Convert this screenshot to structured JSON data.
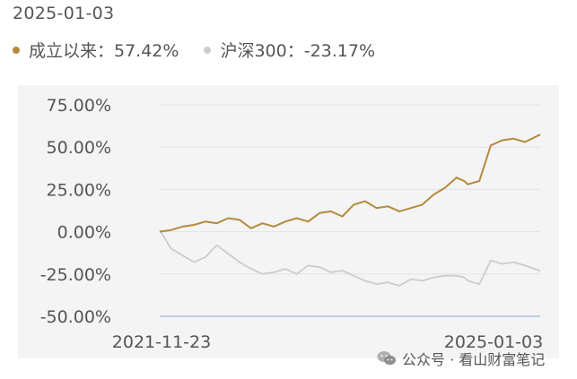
{
  "header": {
    "date": "2025-01-03"
  },
  "legend": [
    {
      "label": "成立以来：57.42%",
      "color": "#b58a3e"
    },
    {
      "label": "沪深300：-23.17%",
      "color": "#cccccc"
    }
  ],
  "watermark": {
    "text": "公众号 · 看山财富笔记"
  },
  "chart_data": {
    "type": "line",
    "title": "",
    "xlabel": "",
    "ylabel": "",
    "y_ticks": [
      "75.00%",
      "50.00%",
      "25.00%",
      "0.00%",
      "-25.00%",
      "-50.00%"
    ],
    "x_ticks": [
      "2021-11-23",
      "2025-01-03"
    ],
    "ylim": [
      -50,
      75
    ],
    "grid": true,
    "colors": {
      "fund": "#b58a3e",
      "index": "#cccccc",
      "baseline": "#a9c4ea",
      "grid": "#dde3ee"
    },
    "x": [
      0,
      3,
      6,
      9,
      12,
      15,
      18,
      21,
      24,
      27,
      30,
      33,
      36,
      39,
      42,
      45,
      48,
      51,
      54,
      57,
      60,
      63,
      66,
      69,
      72,
      75,
      78,
      80,
      81,
      84,
      87,
      90,
      93,
      96,
      100
    ],
    "series": [
      {
        "values": [
          0,
          1,
          3,
          4,
          6,
          5,
          8,
          7,
          2,
          5,
          3,
          6,
          8,
          6,
          11,
          12,
          9,
          16,
          18,
          14,
          15,
          12,
          14,
          16,
          22,
          26,
          32,
          30,
          28,
          30,
          51,
          54,
          55,
          53,
          57.42
        ]
      },
      {
        "values": [
          1,
          -10,
          -14,
          -18,
          -15,
          -8,
          -13,
          -18,
          -22,
          -25,
          -24,
          -22,
          -25,
          -20,
          -21,
          -24,
          -23,
          -26,
          -29,
          -31,
          -30,
          -32,
          -28,
          -29,
          -27,
          -26,
          -26,
          -27,
          -29,
          -31,
          -17,
          -19,
          -18,
          -20,
          -23.17
        ]
      }
    ]
  }
}
